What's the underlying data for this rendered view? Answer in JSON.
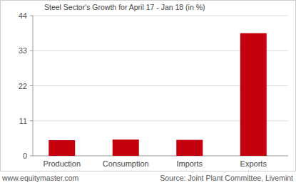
{
  "chart_data": {
    "type": "bar",
    "title": "Steel Sector's Growth for April 17 - Jan 18 (in %)",
    "categories": [
      "Production",
      "Consumption",
      "Imports",
      "Exports"
    ],
    "values": [
      4.9,
      5.1,
      5.0,
      38.5
    ],
    "color": "#c4000e",
    "ylim": [
      0,
      44
    ],
    "yticks": [
      0,
      11,
      22,
      33,
      44
    ],
    "grid": true,
    "annotations": [
      "www.equitymaster.com",
      "Source: Joint Plant Committee, Livemint"
    ]
  }
}
